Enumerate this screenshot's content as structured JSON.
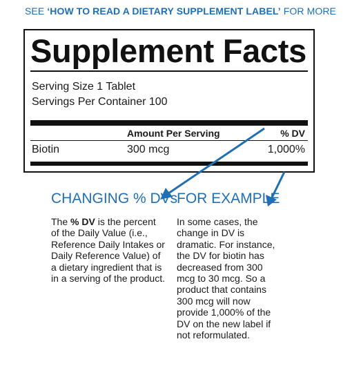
{
  "header_note": {
    "prefix": "SEE ",
    "link_text": "‘HOW TO READ A DIETARY SUPPLEMENT LABEL’",
    "suffix": " FOR MORE"
  },
  "facts": {
    "title": "Supplement Facts",
    "serving_size": "Serving Size 1 Tablet",
    "servings_per_container": "Servings Per Container 100",
    "column_amount": "Amount Per Serving",
    "column_dv": "% DV",
    "row": {
      "name": "Biotin",
      "amount": "300 mcg",
      "dv": "1,000%"
    }
  },
  "left_section": {
    "heading": "CHANGING % DVs",
    "text_pre": "The ",
    "text_kw": "% DV",
    "text_post": " is the percent of the Daily Value (i.e., Reference Daily Intakes or Daily Reference Value) of a dietary ingredient that is in a serving of the product."
  },
  "right_section": {
    "heading": "FOR EXAMPLE",
    "text": "In some cases, the change in DV is dramatic. For instance, the DV for biotin has decreased from 300 mcg to 30 mcg. So a product that contains 300 mcg will now provide 1,000% of the DV on the new label if not reformulated."
  },
  "colors": {
    "accent": "#1f6fb4",
    "ink": "#111111"
  },
  "icons": [
    "arrow-to-changing-dvs-icon",
    "arrow-to-for-example-icon"
  ]
}
